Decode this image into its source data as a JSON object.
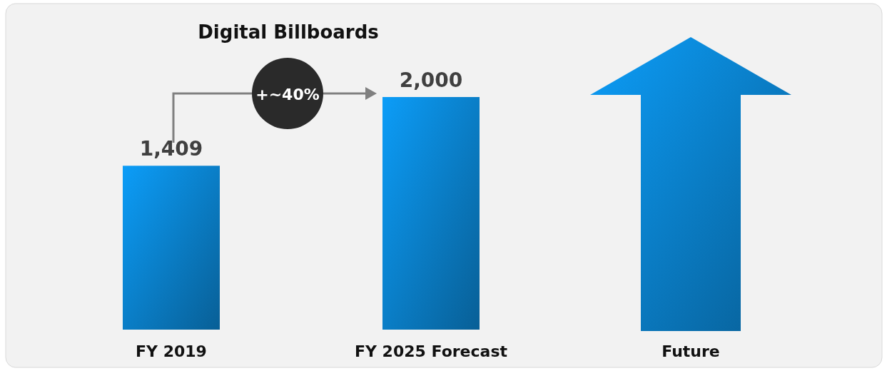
{
  "chart_data": {
    "type": "bar",
    "title": "Digital Billboards",
    "categories": [
      "FY 2019",
      "FY 2025 Forecast",
      "Future"
    ],
    "values": [
      1409,
      2000,
      null
    ],
    "color": "#0a7fc8",
    "value_labels": [
      "1,409",
      "2,000",
      null
    ],
    "annotations": [
      "+~40%"
    ]
  }
}
